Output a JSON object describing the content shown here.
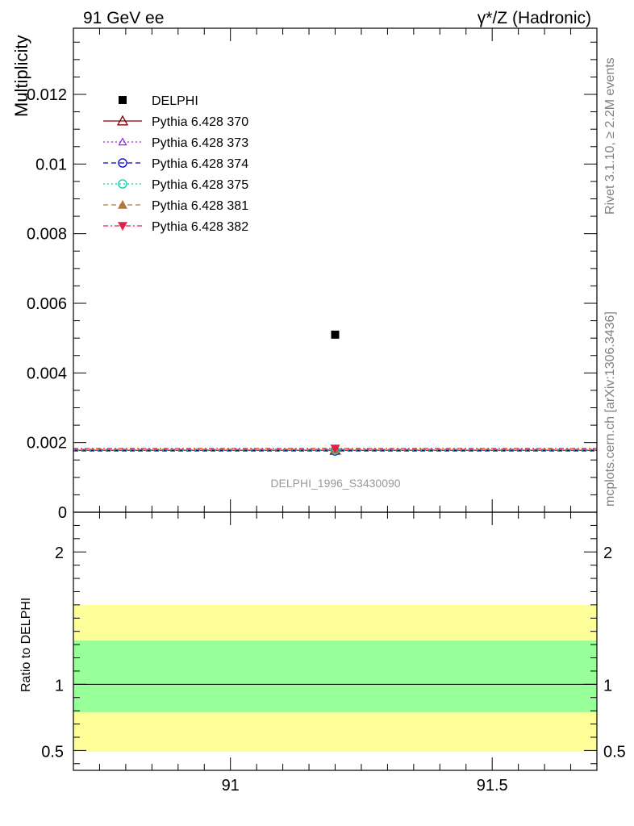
{
  "header": {
    "left": "91 GeV ee",
    "right": "γ*/Z (Hadronic)"
  },
  "side_labels": {
    "rivet": "Rivet 3.1.10, ≥ 2.2M events",
    "mcplots": "mcplots.cern.ch [arXiv:1306.3436]"
  },
  "watermark": "DELPHI_1996_S3430090",
  "chart_data": [
    {
      "type": "scatter",
      "title": "",
      "ylabel": "Multiplicity",
      "xlim": [
        90.7,
        91.7
      ],
      "ylim": [
        0,
        0.0139
      ],
      "y_ticks": [
        {
          "value": 0,
          "label": "0"
        },
        {
          "value": 0.002,
          "label": "0.002"
        },
        {
          "value": 0.004,
          "label": "0.004"
        },
        {
          "value": 0.006,
          "label": "0.006"
        },
        {
          "value": 0.008,
          "label": "0.008"
        },
        {
          "value": 0.01,
          "label": "0.01"
        },
        {
          "value": 0.012,
          "label": "0.012"
        }
      ],
      "legend_position": "top-left",
      "series": [
        {
          "name": "DELPHI",
          "color": "#000000",
          "marker": "square-filled",
          "line": "none",
          "x": [
            91.2
          ],
          "y": [
            0.0051
          ],
          "xerr": [
            0.5
          ]
        },
        {
          "name": "Pythia 6.428 370",
          "color": "#7f0000",
          "marker": "triangle-open",
          "line": "solid",
          "x": [
            91.2
          ],
          "y": [
            0.00178
          ],
          "xerr": [
            0.5
          ]
        },
        {
          "name": "Pythia 6.428 373",
          "color": "#8a2be2",
          "marker": "triangle-open-small",
          "line": "dotted",
          "x": [
            91.2
          ],
          "y": [
            0.00179
          ],
          "xerr": [
            0.5
          ]
        },
        {
          "name": "Pythia 6.428 374",
          "color": "#0000cc",
          "marker": "circle-open",
          "line": "dashed",
          "x": [
            91.2
          ],
          "y": [
            0.00176
          ],
          "xerr": [
            0.5
          ]
        },
        {
          "name": "Pythia 6.428 375",
          "color": "#00cfa8",
          "marker": "circle-open",
          "line": "dotted",
          "x": [
            91.2
          ],
          "y": [
            0.00178
          ],
          "xerr": [
            0.5
          ]
        },
        {
          "name": "Pythia 6.428 381",
          "color": "#b07840",
          "marker": "triangle-filled",
          "line": "dashed",
          "x": [
            91.2
          ],
          "y": [
            0.00181
          ],
          "xerr": [
            0.5
          ]
        },
        {
          "name": "Pythia 6.428 382",
          "color": "#e0204a",
          "marker": "triangle-down-filled",
          "line": "dashdot",
          "x": [
            91.2
          ],
          "y": [
            0.00183
          ],
          "xerr": [
            0.5
          ]
        }
      ]
    },
    {
      "type": "area",
      "title": "",
      "ylabel": "Ratio to DELPHI",
      "xlim": [
        90.7,
        91.7
      ],
      "ylim": [
        0.35,
        2.3
      ],
      "y_ticks": [
        {
          "value": 0.5,
          "label": "0.5"
        },
        {
          "value": 1,
          "label": "1"
        },
        {
          "value": 2,
          "label": "2"
        }
      ],
      "x_ticks": [
        {
          "value": 91,
          "label": "91"
        },
        {
          "value": 91.5,
          "label": "91.5"
        }
      ],
      "bands": [
        {
          "name": "outer",
          "color": "#ffff99",
          "low": 0.49,
          "high": 1.6
        },
        {
          "name": "inner",
          "color": "#99ff99",
          "low": 0.79,
          "high": 1.33
        }
      ],
      "reference_line": 1
    }
  ]
}
